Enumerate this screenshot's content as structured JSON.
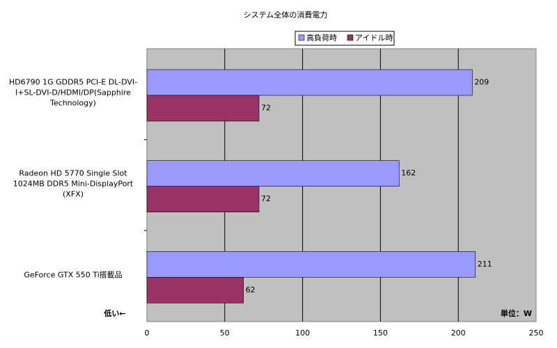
{
  "chart_data": {
    "type": "hbar",
    "title": "システム全体の消費電力",
    "categories": [
      "HD6790 1G GDDR5 PCI-E DL-DVI-I+SL-DVI-D/HDMI/DP(Sapphire Technology)",
      "Radeon HD 5770 Single Slot 1024MB DDR5 Mini-DisplayPort (XFX)",
      "GeForce GTX 550 Ti搭載品"
    ],
    "series": [
      {
        "name": "高負荷時",
        "color": "#9999ff",
        "values": [
          209,
          162,
          211
        ]
      },
      {
        "name": "アイドル時",
        "color": "#993366",
        "values": [
          72,
          72,
          62
        ]
      }
    ],
    "xlim": [
      0,
      250
    ],
    "xticks": [
      0,
      50,
      100,
      150,
      200,
      250
    ],
    "grid": true,
    "annotations": [
      "低い←",
      "単位：W"
    ]
  }
}
